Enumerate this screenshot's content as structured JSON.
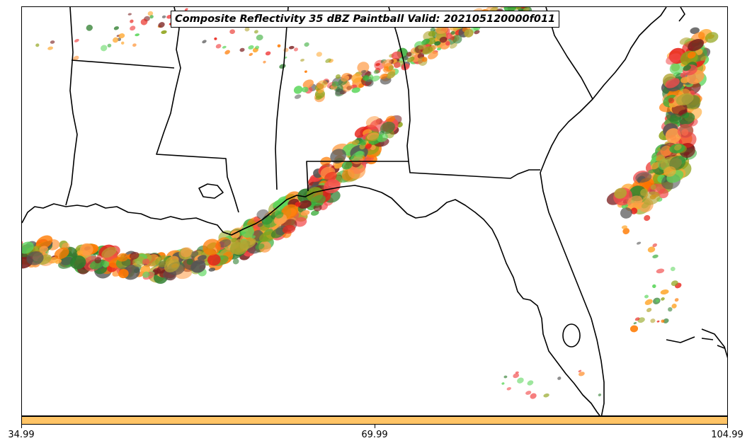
{
  "title": "Composite Reflectivity 35 dBZ Paintball Valid: 202105120000f011",
  "colorbar": {
    "color": "#ffc466",
    "ticks": [
      "34.99",
      "69.99",
      "104.99"
    ]
  },
  "colors": {
    "paint": [
      "#e8231a",
      "#ff7a00",
      "#ff9e4a",
      "#ffa830",
      "#2e7d2e",
      "#5cd65c",
      "#3aad3a",
      "#8fa31a",
      "#b3a633",
      "#7a1f1f",
      "#555555",
      "#f24c4c"
    ]
  }
}
